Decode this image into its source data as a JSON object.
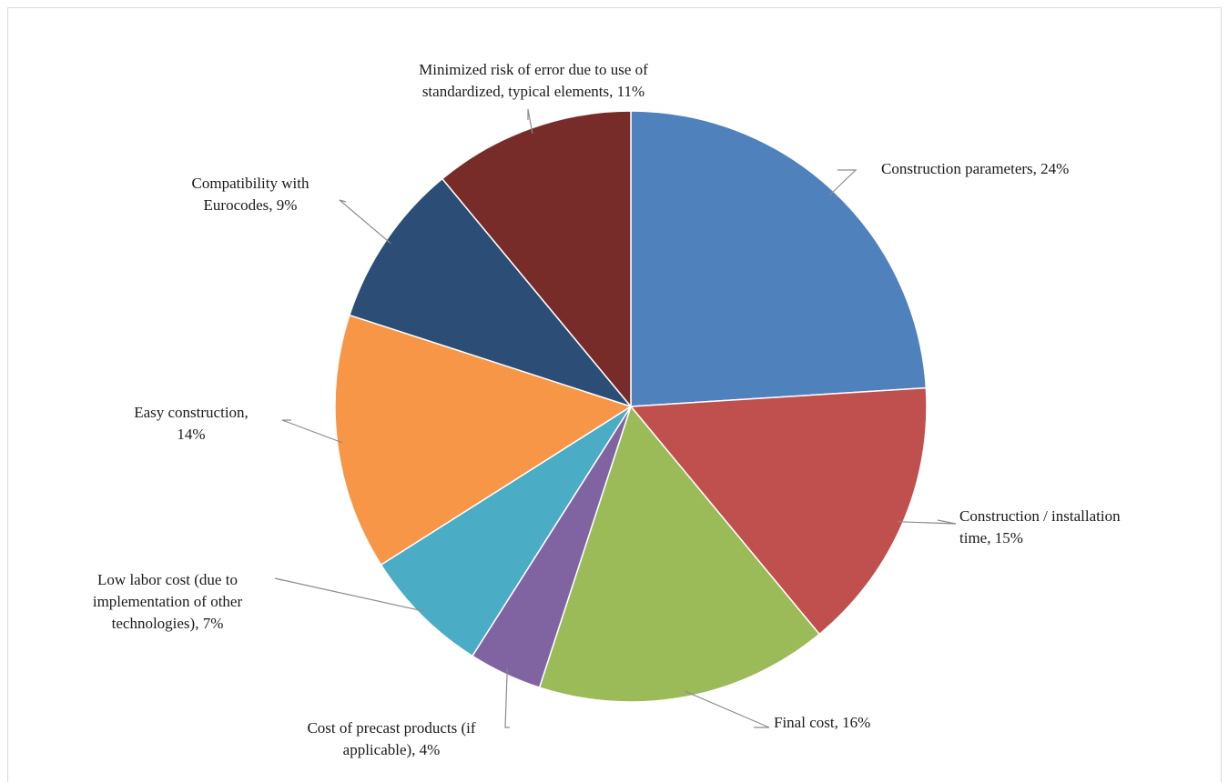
{
  "chart_data": {
    "type": "pie",
    "title": "",
    "start_angle_deg": 0,
    "direction": "clockwise",
    "slices": [
      {
        "label": "Construction parameters",
        "value": 24,
        "display": [
          "Construction parameters, 24%"
        ],
        "color": "#4f81bd"
      },
      {
        "label": "Construction / installation time",
        "value": 15,
        "display": [
          "Construction / installation",
          "time, 15%"
        ],
        "color": "#c0504d"
      },
      {
        "label": "Final cost",
        "value": 16,
        "display": [
          "Final cost, 16%"
        ],
        "color": "#9bbb59"
      },
      {
        "label": "Cost of precast products (if applicable)",
        "value": 4,
        "display": [
          "Cost of precast products (if",
          "applicable), 4%"
        ],
        "color": "#8064a2"
      },
      {
        "label": "Low labor cost (due to implementation of other technologies)",
        "value": 7,
        "display": [
          "Low labor cost (due to",
          "implementation of other",
          "technologies), 7%"
        ],
        "color": "#4bacc6"
      },
      {
        "label": "Easy construction",
        "value": 14,
        "display": [
          "Easy construction,",
          "14%"
        ],
        "color": "#f79646"
      },
      {
        "label": "Compatibility with Eurocodes",
        "value": 9,
        "display": [
          "Compatibility with",
          "Eurocodes, 9%"
        ],
        "color": "#2c4d75"
      },
      {
        "label": "Minimized risk of error due to use of standardized, typical elements",
        "value": 11,
        "display": [
          "Minimized risk of error due to use of",
          "standardized, typical elements, 11%"
        ],
        "color": "#772c2a"
      }
    ],
    "leader_line_color": "#8c8c8c",
    "slice_border_color": "#ffffff"
  }
}
